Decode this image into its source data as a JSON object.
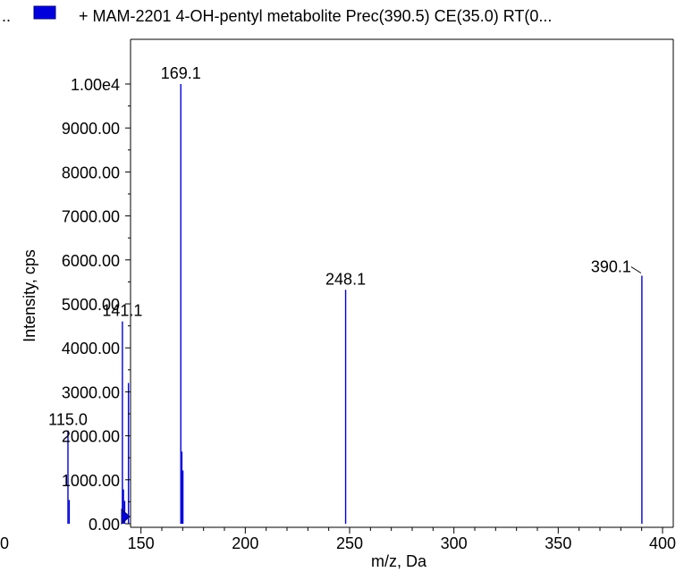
{
  "legend": {
    "left_fragment": "..",
    "entry": "+ MAM-2201 4-OH-pentyl metabolite Prec(390.5) CE(35.0) RT(0...",
    "swatch_color": "#0000dd"
  },
  "chart_data": {
    "type": "bar",
    "title": "",
    "xlabel": "m/z, Da",
    "ylabel": "Intensity, cps",
    "xlim": [
      100,
      400
    ],
    "ylim": [
      0,
      10000
    ],
    "x_ticks": [
      150,
      200,
      250,
      300,
      350,
      400
    ],
    "x_tick_labels": [
      "150",
      "200",
      "250",
      "300",
      "350",
      "400"
    ],
    "x_left_edge_label": "0",
    "y_ticks": [
      0,
      1000,
      2000,
      3000,
      4000,
      5000,
      6000,
      7000,
      8000,
      9000,
      10000
    ],
    "y_tick_labels": [
      "0.00",
      "1000.00",
      "2000.00",
      "3000.00",
      "4000.00",
      "5000.00",
      "6000.00",
      "7000.00",
      "8000.00",
      "9000.00",
      "1.00e4"
    ],
    "series_color": "#0000dd",
    "peaks": [
      {
        "mz": 115.0,
        "intensity": 2120
      },
      {
        "mz": 115.6,
        "intensity": 540
      },
      {
        "mz": 141.1,
        "intensity": 4600
      },
      {
        "mz": 141.6,
        "intensity": 780
      },
      {
        "mz": 142.2,
        "intensity": 520
      },
      {
        "mz": 144.0,
        "intensity": 3200
      },
      {
        "mz": 169.1,
        "intensity": 10000
      },
      {
        "mz": 169.6,
        "intensity": 1640
      },
      {
        "mz": 170.1,
        "intensity": 1210
      },
      {
        "mz": 248.1,
        "intensity": 5320
      },
      {
        "mz": 390.1,
        "intensity": 5640
      }
    ],
    "peak_labels": [
      {
        "mz": 115.0,
        "intensity": 2120,
        "text": "115.0"
      },
      {
        "mz": 141.1,
        "intensity": 4600,
        "text": "141.1"
      },
      {
        "mz": 169.1,
        "intensity": 10000,
        "text": "169.1"
      },
      {
        "mz": 248.1,
        "intensity": 5320,
        "text": "248.1"
      },
      {
        "mz": 390.1,
        "intensity": 5640,
        "text": "390.1"
      }
    ],
    "grid": false,
    "legend_position": "top"
  }
}
